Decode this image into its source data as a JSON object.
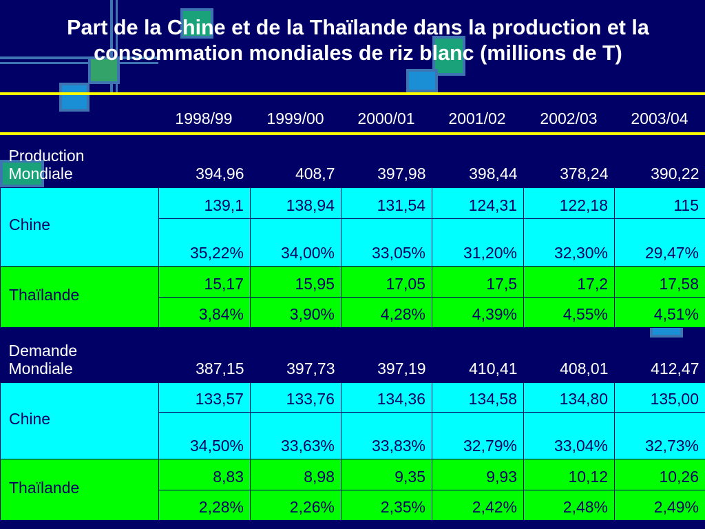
{
  "title": "Part de la Chine et de la Thaïlande dans la production et la consommation mondiales de riz blanc (millions de T)",
  "colors": {
    "background": "#000066",
    "accent_rule": "#ffff00",
    "china_band": "#00ffff",
    "thailand_band": "#00ff00",
    "text_dark": "#000066"
  },
  "table": {
    "years": [
      "1998/99",
      "1999/00",
      "2000/01",
      "2001/02",
      "2002/03",
      "2003/04"
    ],
    "production": {
      "label_line1": "Production",
      "label_line2": "Mondiale",
      "values": [
        "394,96",
        "408,7",
        "397,98",
        "398,44",
        "378,24",
        "390,22"
      ],
      "chine": {
        "label": "Chine",
        "values": [
          "139,1",
          "138,94",
          "131,54",
          "124,31",
          "122,18",
          "115"
        ],
        "shares": [
          "35,22%",
          "34,00%",
          "33,05%",
          "31,20%",
          "32,30%",
          "29,47%"
        ]
      },
      "thailande": {
        "label": "Thaïlande",
        "values": [
          "15,17",
          "15,95",
          "17,05",
          "17,5",
          "17,2",
          "17,58"
        ],
        "shares": [
          "3,84%",
          "3,90%",
          "4,28%",
          "4,39%",
          "4,55%",
          "4,51%"
        ]
      }
    },
    "demande": {
      "label_line1": "Demande",
      "label_line2": "Mondiale",
      "values": [
        "387,15",
        "397,73",
        "397,19",
        "410,41",
        "408,01",
        "412,47"
      ],
      "chine": {
        "label": "Chine",
        "values": [
          "133,57",
          "133,76",
          "134,36",
          "134,58",
          "134,80",
          "135,00"
        ],
        "shares": [
          "34,50%",
          "33,63%",
          "33,83%",
          "32,79%",
          "33,04%",
          "32,73%"
        ]
      },
      "thailande": {
        "label": "Thaïlande",
        "values": [
          "8,83",
          "8,98",
          "9,35",
          "9,93",
          "10,12",
          "10,26"
        ],
        "shares": [
          "2,28%",
          "2,26%",
          "2,35%",
          "2,42%",
          "2,48%",
          "2,49%"
        ]
      }
    }
  }
}
